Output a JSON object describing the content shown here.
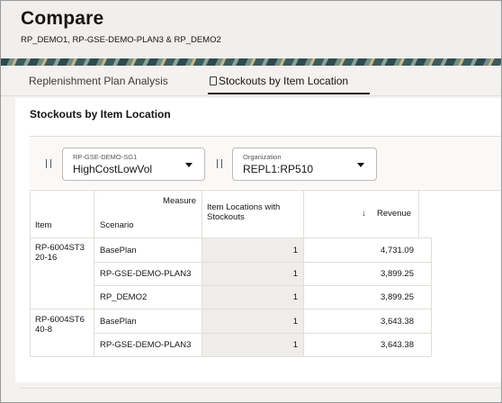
{
  "header": {
    "title": "Compare",
    "subtitle": "RP_DEMO1, RP-GSE-DEMO-PLAN3 & RP_DEMO2"
  },
  "tabs": [
    {
      "label": "Replenishment Plan Analysis",
      "active": false
    },
    {
      "label": "Stockouts by Item Location",
      "active": true,
      "icon": "document-icon"
    }
  ],
  "add_tab_icon": "plus-icon",
  "section": {
    "title": "Stockouts by Item Location"
  },
  "filters": [
    {
      "label": "RP-GSE-DEMO-SG1",
      "value": "HighCostLowVol"
    },
    {
      "label": "Organization",
      "value": "REPL1:RP510"
    }
  ],
  "table": {
    "measure_label": "Measure",
    "item_header": "Item",
    "scenario_header": "Scenario",
    "col1_header": "Item Locations with Stockouts",
    "col2_header": "Revenue",
    "sort_icon": "arrow-down-icon",
    "rows": [
      {
        "item": "RP-6004ST3 20-16",
        "scenario": "BasePlan",
        "stockouts": "1",
        "revenue": "4,731.09"
      },
      {
        "item": "",
        "scenario": "RP-GSE-DEMO-PLAN3",
        "stockouts": "1",
        "revenue": "3,899.25"
      },
      {
        "item": "",
        "scenario": "RP_DEMO2",
        "stockouts": "1",
        "revenue": "3,899.25"
      },
      {
        "item": "RP-6004ST6 40-8",
        "scenario": "BasePlan",
        "stockouts": "1",
        "revenue": "3,643.38"
      },
      {
        "item": "",
        "scenario": "RP-GSE-DEMO-PLAN3",
        "stockouts": "1",
        "revenue": "3,643.38"
      }
    ]
  },
  "colors": {
    "accent": "#161513",
    "header_bg": "#f1efed",
    "shade": "#efedeb"
  }
}
